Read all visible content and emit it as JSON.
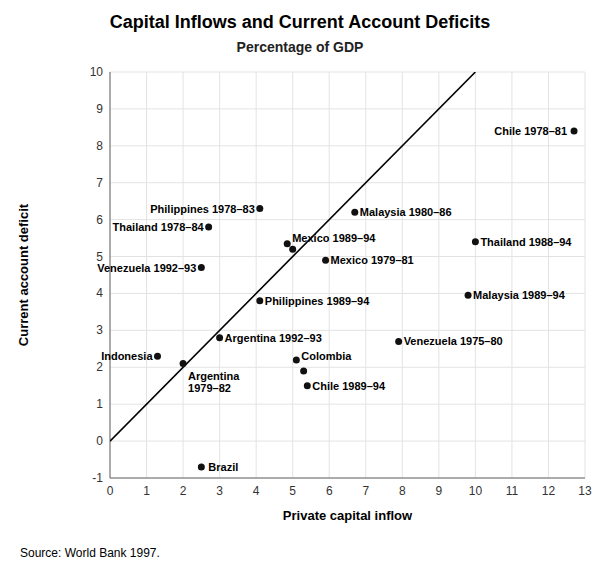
{
  "chart_data": {
    "type": "scatter",
    "title": "Capital Inflows and Current Account Deficits",
    "subtitle": "Percentage of GDP",
    "x_label": "Private capital inflow",
    "y_label": "Current account deficit",
    "source": "Source: World Bank 1997.",
    "x": [
      1.3,
      2.0,
      2.5,
      2.5,
      2.7,
      3.0,
      4.1,
      4.1,
      4.85,
      5.0,
      5.1,
      5.3,
      5.4,
      5.9,
      6.7,
      7.9,
      9.8,
      10.0,
      12.7
    ],
    "values": [
      2.3,
      2.1,
      4.7,
      -0.7,
      5.8,
      2.8,
      6.3,
      3.8,
      5.35,
      5.2,
      2.2,
      1.9,
      1.5,
      4.9,
      6.2,
      2.7,
      3.95,
      5.4,
      8.4
    ],
    "labels": [
      "Indonesia",
      "Argentina\n1979–82",
      "Venezuela 1992–93",
      "Brazil",
      "Thailand 1978–84",
      "Argentina 1992–93",
      "Philippines 1978–83",
      "Philippines 1989–94",
      "Mexico 1989–94",
      null,
      "Colombia",
      null,
      "Chile 1989–94",
      "Mexico 1979–81",
      "Malaysia 1980–86",
      "Venezuela 1975–80",
      "Malaysia 1989–94",
      "Thailand 1988–94",
      "Chile 1978–81"
    ],
    "color": "#111111",
    "marker": "circle",
    "reference_line": {
      "x": [
        0,
        10
      ],
      "values": [
        0,
        10
      ],
      "color": "#000000"
    },
    "xlim": [
      0,
      13
    ],
    "ylim": [
      -1,
      10
    ],
    "xticks": [
      0,
      1,
      2,
      3,
      4,
      5,
      6,
      7,
      8,
      9,
      10,
      11,
      12,
      13
    ],
    "yticks": [
      -1,
      0,
      1,
      2,
      3,
      4,
      5,
      6,
      7,
      8,
      9,
      10
    ],
    "grid": true
  }
}
